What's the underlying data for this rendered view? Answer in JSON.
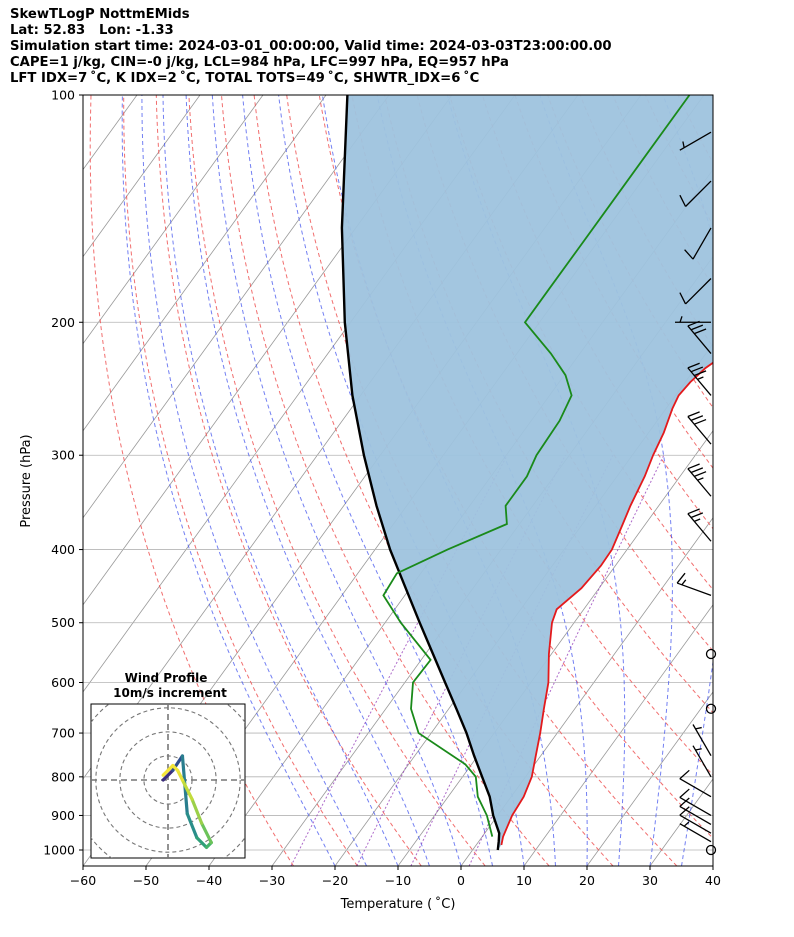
{
  "header": {
    "lines": [
      "SkewTLogP NottmEMids",
      "Lat: 52.83   Lon: -1.33",
      "Simulation start time: 2024-03-01_00:00:00, Valid time: 2024-03-03T23:00:00.00",
      "CAPE=1 j/kg, CIN=-0 j/kg, LCL=984 hPa, LFC=997 hPa, EQ=957 hPa",
      "LFT IDX=7 ˚C, K IDX=2 ˚C, TOTAL TOTS=49 ˚C, SHWTR_IDX=6 ˚C"
    ]
  },
  "chart_data": {
    "type": "skewt",
    "xlabel": "Temperature ( ˚C)",
    "ylabel": "Pressure (hPa)",
    "xlim": [
      -60,
      40
    ],
    "ylim": [
      1050,
      100
    ],
    "x_ticks": [
      -60,
      -50,
      -40,
      -30,
      -20,
      -10,
      0,
      10,
      20,
      30,
      40
    ],
    "y_ticks": [
      1000,
      900,
      800,
      700,
      600,
      500,
      400,
      300,
      200,
      100
    ],
    "y_scale": "log",
    "grid": true,
    "colors": {
      "temperature": "#e31a1c",
      "dewpoint": "#1a8a1a",
      "parcel": "#000000",
      "cape_fill": "#9ec3de",
      "dry_adiabat": "#ee5555",
      "moist_adiabat": "#4455ee",
      "mixing_ratio": "#9944bb",
      "isotherm": "#999999"
    },
    "temperature": {
      "p": [
        985,
        960,
        900,
        850,
        800,
        750,
        700,
        650,
        600,
        550,
        500,
        480,
        450,
        420,
        400,
        370,
        350,
        320,
        300,
        280,
        260,
        250,
        240,
        230,
        220,
        210,
        200,
        180,
        160,
        150,
        140,
        130,
        120,
        110,
        100
      ],
      "t": [
        4,
        3.3,
        2.3,
        2,
        1,
        -0.8,
        -2.7,
        -4.9,
        -7.2,
        -10.4,
        -13.5,
        -14.3,
        -12.8,
        -12.3,
        -12.4,
        -13.6,
        -14.5,
        -15.6,
        -16.7,
        -17.6,
        -19,
        -19.5,
        -19.2,
        -18.4,
        -16.8,
        -15.3,
        -14.4,
        -12.9,
        -10.6,
        -9,
        -6.8,
        -5.8,
        -3.9,
        -2.5,
        -1.2
      ]
    },
    "dewpoint": {
      "p": [
        960,
        900,
        850,
        800,
        770,
        700,
        650,
        600,
        560,
        500,
        460,
        430,
        400,
        370,
        350,
        320,
        300,
        270,
        250,
        235,
        220,
        200,
        180,
        160,
        140,
        120,
        100
      ],
      "t": [
        1.6,
        -1.7,
        -5.3,
        -7.9,
        -11,
        -22,
        -26,
        -28.7,
        -28.5,
        -37.5,
        -43.4,
        -43.8,
        -38.5,
        -32,
        -34.3,
        -34.3,
        -35.2,
        -35.5,
        -36.5,
        -39.8,
        -44.6,
        -52.3,
        -52.3,
        -52.3,
        -52.3,
        -52.3,
        -52.3
      ]
    },
    "parcel": {
      "p": [
        1000,
        975,
        950,
        900,
        850,
        800,
        750,
        700,
        650,
        600,
        550,
        500,
        450,
        400,
        350,
        300,
        250,
        200,
        150,
        100
      ],
      "t": [
        4,
        3.2,
        2.3,
        -0.7,
        -3.4,
        -6.9,
        -10.6,
        -14.4,
        -18.8,
        -23.6,
        -28.8,
        -34.5,
        -40.7,
        -47.6,
        -54.8,
        -62.6,
        -71.3,
        -80.9,
        -92.2,
        -106.6
      ]
    },
    "wind_barbs": [
      {
        "p": 1000,
        "speed": 0,
        "direction": null
      },
      {
        "p": 975,
        "speed": 5,
        "direction": 300
      },
      {
        "p": 950,
        "speed": 10,
        "direction": 300
      },
      {
        "p": 925,
        "speed": 10,
        "direction": 300
      },
      {
        "p": 900,
        "speed": 10,
        "direction": 300
      },
      {
        "p": 850,
        "speed": 10,
        "direction": 300
      },
      {
        "p": 800,
        "speed": 5,
        "direction": 330
      },
      {
        "p": 750,
        "speed": 5,
        "direction": 330
      },
      {
        "p": 650,
        "speed": 0,
        "direction": null
      },
      {
        "p": 550,
        "speed": 0,
        "direction": null
      },
      {
        "p": 460,
        "speed": 15,
        "direction": 290
      },
      {
        "p": 390,
        "speed": 25,
        "direction": 320
      },
      {
        "p": 340,
        "speed": 35,
        "direction": 320
      },
      {
        "p": 290,
        "speed": 30,
        "direction": 320
      },
      {
        "p": 250,
        "speed": 35,
        "direction": 320
      },
      {
        "p": 220,
        "speed": 30,
        "direction": 320
      },
      {
        "p": 200,
        "speed": 5,
        "direction": 270
      },
      {
        "p": 175,
        "speed": 10,
        "direction": 225
      },
      {
        "p": 150,
        "speed": 10,
        "direction": 210
      },
      {
        "p": 130,
        "speed": 10,
        "direction": 225
      },
      {
        "p": 112,
        "speed": 5,
        "direction": 240
      }
    ],
    "hodograph": {
      "title": "Wind Profile",
      "subtitle": "10m/s increment",
      "ring_step_ms": 10,
      "range_ms": 40,
      "points_uv_ms": [
        [
          -1,
          0
        ],
        [
          1,
          2
        ],
        [
          3,
          5
        ],
        [
          4,
          -7
        ],
        [
          6,
          -12
        ],
        [
          8,
          -14
        ],
        [
          9,
          -13
        ],
        [
          7,
          -9
        ],
        [
          5,
          -4
        ],
        [
          3,
          0
        ],
        [
          2,
          2
        ],
        [
          1,
          3
        ],
        [
          0,
          2
        ],
        [
          -1,
          1
        ]
      ]
    }
  }
}
